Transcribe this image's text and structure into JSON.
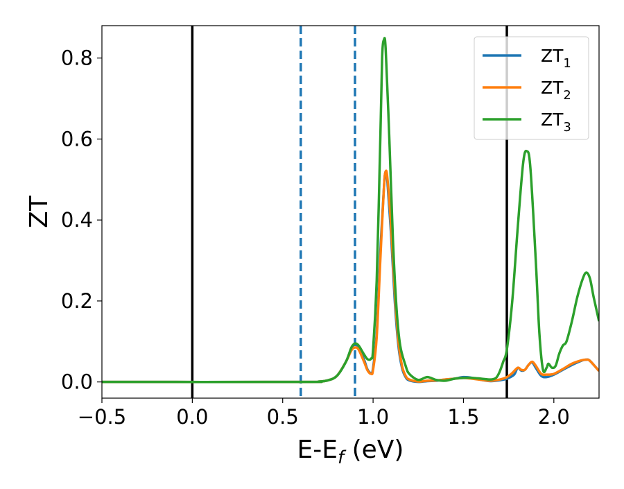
{
  "chart_data": {
    "type": "line",
    "xlabel": "E-E",
    "xlabel_subscript": "f",
    "xlabel_unit": " (eV)",
    "ylabel": "ZT",
    "xlim": [
      -0.5,
      2.25
    ],
    "ylim": [
      -0.04,
      0.88
    ],
    "x_ticks": [
      -0.5,
      0.0,
      0.5,
      1.0,
      1.5,
      2.0
    ],
    "x_tick_labels": [
      "−0.5",
      "0.0",
      "0.5",
      "1.0",
      "1.5",
      "2.0"
    ],
    "y_ticks": [
      0.0,
      0.2,
      0.4,
      0.6,
      0.8
    ],
    "y_tick_labels": [
      "0.0",
      "0.2",
      "0.4",
      "0.6",
      "0.8"
    ],
    "grid": false,
    "legend_position": "top-right",
    "vertical_lines": [
      {
        "x": 0.0,
        "style": "solid",
        "color": "#000000"
      },
      {
        "x": 1.74,
        "style": "solid",
        "color": "#000000"
      },
      {
        "x": 0.6,
        "style": "dashed",
        "color": "#1f77b4"
      },
      {
        "x": 0.9,
        "style": "dashed",
        "color": "#1f77b4"
      }
    ],
    "series": [
      {
        "name": "ZT",
        "subscript": "1",
        "color": "#1f77b4",
        "points": [
          [
            -0.5,
            0
          ],
          [
            0.6,
            0
          ],
          [
            0.7,
            0.001
          ],
          [
            0.75,
            0.004
          ],
          [
            0.8,
            0.015
          ],
          [
            0.85,
            0.05
          ],
          [
            0.88,
            0.082
          ],
          [
            0.9,
            0.093
          ],
          [
            0.92,
            0.085
          ],
          [
            0.95,
            0.055
          ],
          [
            0.97,
            0.03
          ],
          [
            0.99,
            0.022
          ],
          [
            1.0,
            0.035
          ],
          [
            1.02,
            0.12
          ],
          [
            1.04,
            0.32
          ],
          [
            1.06,
            0.48
          ],
          [
            1.07,
            0.52
          ],
          [
            1.08,
            0.49
          ],
          [
            1.1,
            0.36
          ],
          [
            1.12,
            0.2
          ],
          [
            1.14,
            0.09
          ],
          [
            1.16,
            0.035
          ],
          [
            1.18,
            0.012
          ],
          [
            1.2,
            0.004
          ],
          [
            1.25,
            0.0
          ],
          [
            1.3,
            0.002
          ],
          [
            1.35,
            0.003
          ],
          [
            1.4,
            0.006
          ],
          [
            1.45,
            0.008
          ],
          [
            1.5,
            0.012
          ],
          [
            1.55,
            0.01
          ],
          [
            1.6,
            0.005
          ],
          [
            1.65,
            0.002
          ],
          [
            1.7,
            0.004
          ],
          [
            1.74,
            0.008
          ],
          [
            1.78,
            0.018
          ],
          [
            1.8,
            0.035
          ],
          [
            1.82,
            0.028
          ],
          [
            1.84,
            0.03
          ],
          [
            1.86,
            0.042
          ],
          [
            1.88,
            0.048
          ],
          [
            1.9,
            0.035
          ],
          [
            1.93,
            0.015
          ],
          [
            1.96,
            0.012
          ],
          [
            2.0,
            0.018
          ],
          [
            2.05,
            0.03
          ],
          [
            2.1,
            0.042
          ],
          [
            2.15,
            0.052
          ],
          [
            2.18,
            0.055
          ],
          [
            2.2,
            0.052
          ],
          [
            2.25,
            0.027
          ]
        ]
      },
      {
        "name": "ZT",
        "subscript": "2",
        "color": "#ff7f0e",
        "points": [
          [
            -0.5,
            0
          ],
          [
            0.6,
            0
          ],
          [
            0.7,
            0.001
          ],
          [
            0.75,
            0.004
          ],
          [
            0.8,
            0.015
          ],
          [
            0.85,
            0.05
          ],
          [
            0.88,
            0.078
          ],
          [
            0.9,
            0.085
          ],
          [
            0.92,
            0.08
          ],
          [
            0.95,
            0.05
          ],
          [
            0.97,
            0.028
          ],
          [
            0.99,
            0.02
          ],
          [
            1.0,
            0.03
          ],
          [
            1.02,
            0.11
          ],
          [
            1.04,
            0.3
          ],
          [
            1.06,
            0.48
          ],
          [
            1.07,
            0.52
          ],
          [
            1.08,
            0.5
          ],
          [
            1.1,
            0.38
          ],
          [
            1.12,
            0.22
          ],
          [
            1.14,
            0.1
          ],
          [
            1.16,
            0.04
          ],
          [
            1.18,
            0.015
          ],
          [
            1.2,
            0.006
          ],
          [
            1.25,
            0.001
          ],
          [
            1.3,
            0.003
          ],
          [
            1.35,
            0.004
          ],
          [
            1.4,
            0.006
          ],
          [
            1.45,
            0.008
          ],
          [
            1.5,
            0.01
          ],
          [
            1.55,
            0.008
          ],
          [
            1.6,
            0.005
          ],
          [
            1.65,
            0.003
          ],
          [
            1.7,
            0.006
          ],
          [
            1.74,
            0.012
          ],
          [
            1.77,
            0.022
          ],
          [
            1.8,
            0.035
          ],
          [
            1.82,
            0.03
          ],
          [
            1.84,
            0.03
          ],
          [
            1.86,
            0.042
          ],
          [
            1.88,
            0.05
          ],
          [
            1.9,
            0.04
          ],
          [
            1.93,
            0.02
          ],
          [
            1.96,
            0.018
          ],
          [
            2.0,
            0.02
          ],
          [
            2.05,
            0.032
          ],
          [
            2.1,
            0.045
          ],
          [
            2.15,
            0.053
          ],
          [
            2.18,
            0.055
          ],
          [
            2.2,
            0.052
          ],
          [
            2.25,
            0.027
          ]
        ]
      },
      {
        "name": "ZT",
        "subscript": "3",
        "color": "#2ca02c",
        "points": [
          [
            -0.5,
            0
          ],
          [
            0.6,
            0
          ],
          [
            0.7,
            0.001
          ],
          [
            0.75,
            0.004
          ],
          [
            0.8,
            0.015
          ],
          [
            0.85,
            0.05
          ],
          [
            0.88,
            0.085
          ],
          [
            0.9,
            0.095
          ],
          [
            0.92,
            0.09
          ],
          [
            0.95,
            0.068
          ],
          [
            0.97,
            0.056
          ],
          [
            0.99,
            0.058
          ],
          [
            1.0,
            0.08
          ],
          [
            1.02,
            0.25
          ],
          [
            1.04,
            0.6
          ],
          [
            1.05,
            0.8
          ],
          [
            1.06,
            0.845
          ],
          [
            1.07,
            0.82
          ],
          [
            1.09,
            0.6
          ],
          [
            1.11,
            0.35
          ],
          [
            1.13,
            0.18
          ],
          [
            1.15,
            0.09
          ],
          [
            1.18,
            0.04
          ],
          [
            1.2,
            0.02
          ],
          [
            1.25,
            0.005
          ],
          [
            1.3,
            0.012
          ],
          [
            1.35,
            0.005
          ],
          [
            1.4,
            0.003
          ],
          [
            1.45,
            0.008
          ],
          [
            1.5,
            0.01
          ],
          [
            1.55,
            0.01
          ],
          [
            1.6,
            0.008
          ],
          [
            1.65,
            0.006
          ],
          [
            1.68,
            0.01
          ],
          [
            1.7,
            0.025
          ],
          [
            1.72,
            0.05
          ],
          [
            1.74,
            0.08
          ],
          [
            1.77,
            0.2
          ],
          [
            1.8,
            0.38
          ],
          [
            1.83,
            0.54
          ],
          [
            1.85,
            0.57
          ],
          [
            1.87,
            0.53
          ],
          [
            1.9,
            0.3
          ],
          [
            1.92,
            0.12
          ],
          [
            1.94,
            0.03
          ],
          [
            1.96,
            0.035
          ],
          [
            1.97,
            0.045
          ],
          [
            1.99,
            0.035
          ],
          [
            2.01,
            0.04
          ],
          [
            2.03,
            0.07
          ],
          [
            2.05,
            0.09
          ],
          [
            2.07,
            0.1
          ],
          [
            2.1,
            0.15
          ],
          [
            2.13,
            0.21
          ],
          [
            2.16,
            0.255
          ],
          [
            2.18,
            0.27
          ],
          [
            2.2,
            0.255
          ],
          [
            2.22,
            0.21
          ],
          [
            2.25,
            0.15
          ]
        ]
      }
    ]
  }
}
